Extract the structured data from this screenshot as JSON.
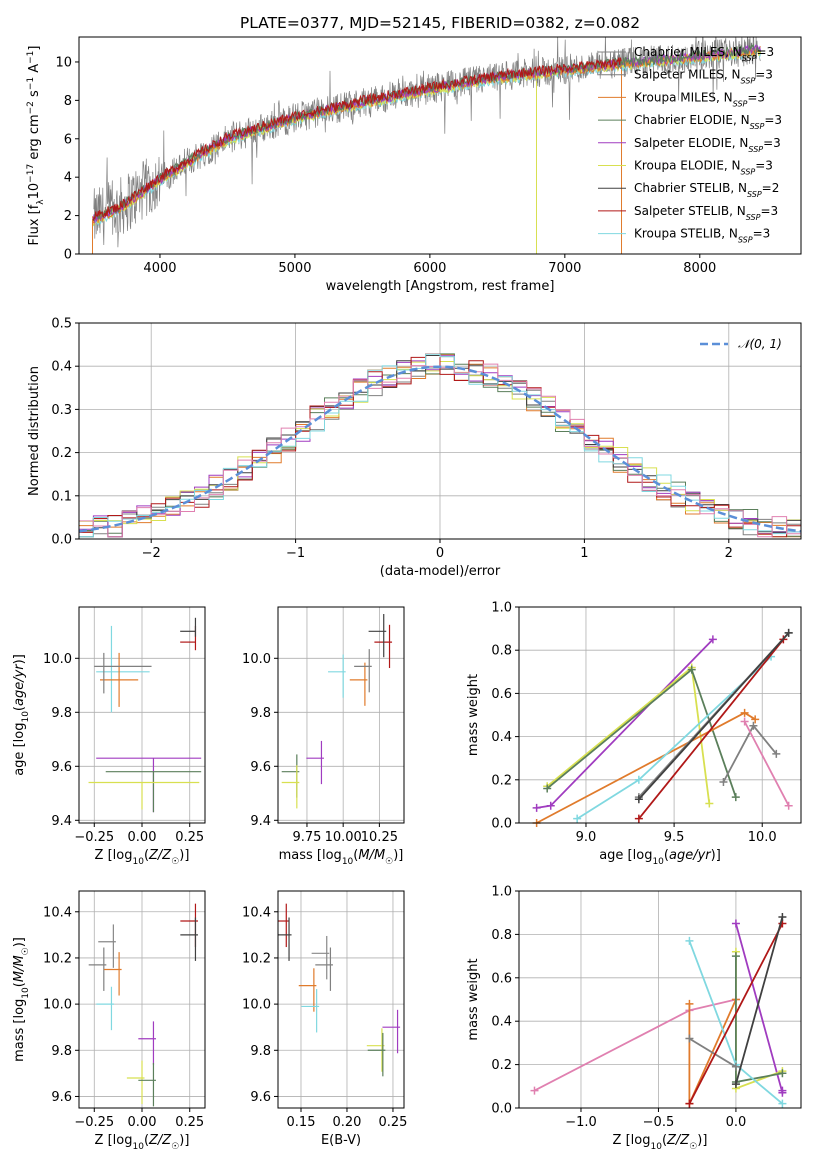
{
  "page": {
    "title": "PLATE=0377, MJD=52145, FIBERID=0382, z=0.082"
  },
  "colors": {
    "chabrier_miles": "#808080",
    "salpeter_miles": "#7f7f7f",
    "kroupa_miles": "#e07b2c",
    "chabrier_elodie": "#5b7f5b",
    "salpeter_elodie": "#a03cc0",
    "kroupa_elodie": "#d8e050",
    "chabrier_stelib": "#404040",
    "salpeter_stelib": "#b01818",
    "kroupa_stelib": "#80d8e0",
    "normal_curve": "#5b8fd8",
    "grid": "#b0b0b0"
  },
  "chart_data": [
    {
      "id": "spectrum",
      "type": "line",
      "xlabel": "wavelength [Angstrom, rest frame]",
      "ylabel": "Flux [f_λ10^-17 erg cm^-2 s^-1 A^-1]",
      "xlim": [
        3400,
        8750
      ],
      "ylim": [
        0,
        11.3
      ],
      "xticks": [
        4000,
        5000,
        6000,
        7000,
        8000
      ],
      "yticks": [
        0,
        2,
        4,
        6,
        8,
        10
      ],
      "grid": false,
      "legend_position": "right",
      "legend": [
        {
          "label": "Chabrier MILES, N_SSP=3",
          "color_key": "chabrier_miles"
        },
        {
          "label": "Salpeter MILES, N_SSP=3",
          "color_key": "salpeter_miles"
        },
        {
          "label": "Kroupa MILES, N_SSP=3",
          "color_key": "kroupa_miles"
        },
        {
          "label": "Chabrier ELODIE, N_SSP=3",
          "color_key": "chabrier_elodie"
        },
        {
          "label": "Salpeter ELODIE, N_SSP=3",
          "color_key": "salpeter_elodie"
        },
        {
          "label": "Kroupa ELODIE, N_SSP=3",
          "color_key": "kroupa_elodie"
        },
        {
          "label": "Chabrier STELIB, N_SSP=2",
          "color_key": "chabrier_stelib"
        },
        {
          "label": "Salpeter STELIB, N_SSP=3",
          "color_key": "salpeter_stelib"
        },
        {
          "label": "Kroupa STELIB, N_SSP=3",
          "color_key": "kroupa_stelib"
        }
      ],
      "continuum_wavelength": [
        3500,
        3700,
        4000,
        4300,
        4500,
        5000,
        5500,
        6000,
        6500,
        7000,
        7400,
        8000,
        8500
      ],
      "continuum_flux": [
        1.8,
        2.4,
        3.9,
        5.2,
        6.0,
        7.1,
        7.9,
        8.6,
        9.2,
        9.6,
        9.9,
        10.3,
        10.7
      ]
    },
    {
      "id": "residuals",
      "type": "histogram",
      "xlabel": "(data-model)/error",
      "ylabel": "Normed distribution",
      "xlim": [
        -2.5,
        2.5
      ],
      "ylim": [
        0,
        0.5
      ],
      "xticks": [
        -2,
        -1,
        0,
        1,
        2
      ],
      "yticks": [
        0.0,
        0.1,
        0.2,
        0.3,
        0.4,
        0.5
      ],
      "grid": true,
      "legend_position": "top-right",
      "legend": [
        {
          "label": "𝒩(0, 1)",
          "color_key": "normal_curve"
        }
      ],
      "bin_width": 0.1
    },
    {
      "id": "age_vs_Z",
      "type": "scatter",
      "xlabel": "Z [log10(Z/Z☉)]",
      "ylabel": "age  [log10(age/yr)]",
      "xlim": [
        -0.33,
        0.33
      ],
      "ylim": [
        9.39,
        10.19
      ],
      "xticks": [
        -0.25,
        0.0,
        0.25
      ],
      "yticks": [
        9.4,
        9.6,
        9.8,
        10.0
      ],
      "grid": true,
      "points": [
        {
          "key": "salpeter_stelib",
          "x": 0.28,
          "y": 10.06,
          "xerr": [
            0.08,
            0.0
          ],
          "yerr": [
            0.03,
            0.06
          ]
        },
        {
          "key": "chabrier_stelib",
          "x": 0.28,
          "y": 10.1,
          "xerr": [
            0.08,
            0.0
          ],
          "yerr": [
            0.02,
            0.05
          ]
        },
        {
          "key": "kroupa_stelib",
          "x": -0.16,
          "y": 9.95,
          "xerr": [
            0.08,
            0.2
          ],
          "yerr": [
            0.15,
            0.17
          ]
        },
        {
          "key": "kroupa_miles",
          "x": -0.12,
          "y": 9.92,
          "xerr": [
            0.1,
            0.1
          ],
          "yerr": [
            0.1,
            0.1
          ]
        },
        {
          "key": "chabrier_miles",
          "x": -0.2,
          "y": 9.97,
          "xerr": [
            0.05,
            0.25
          ],
          "yerr": [
            0.1,
            0.05
          ]
        },
        {
          "key": "salpeter_elodie",
          "x": 0.06,
          "y": 9.63,
          "xerr": [
            0.3,
            0.25
          ],
          "yerr": [
            0.2,
            0.0
          ]
        },
        {
          "key": "chabrier_elodie",
          "x": 0.06,
          "y": 9.58,
          "xerr": [
            0.25,
            0.25
          ],
          "yerr": [
            0.15,
            0.0
          ]
        },
        {
          "key": "kroupa_elodie",
          "x": 0.0,
          "y": 9.54,
          "xerr": [
            0.28,
            0.3
          ],
          "yerr": [
            0.1,
            0.0
          ]
        }
      ]
    },
    {
      "id": "age_vs_mass",
      "type": "scatter",
      "xlabel": "mass [log10(M/M☉)]",
      "ylabel": "",
      "xlim": [
        9.55,
        10.42
      ],
      "ylim": [
        9.39,
        10.19
      ],
      "xticks": [
        9.75,
        10.0,
        10.25
      ],
      "yticks": [
        9.4,
        9.6,
        9.8,
        10.0
      ],
      "grid": true,
      "points": [
        {
          "key": "salpeter_stelib",
          "x": 10.32,
          "y": 10.06
        },
        {
          "key": "chabrier_stelib",
          "x": 10.28,
          "y": 10.1
        },
        {
          "key": "kroupa_stelib",
          "x": 10.0,
          "y": 9.95
        },
        {
          "key": "kroupa_miles",
          "x": 10.15,
          "y": 9.92
        },
        {
          "key": "chabrier_miles",
          "x": 10.18,
          "y": 9.97
        },
        {
          "key": "salpeter_elodie",
          "x": 9.85,
          "y": 9.63
        },
        {
          "key": "chabrier_elodie",
          "x": 9.68,
          "y": 9.58
        },
        {
          "key": "kroupa_elodie",
          "x": 9.68,
          "y": 9.54
        }
      ]
    },
    {
      "id": "weight_vs_age",
      "type": "line",
      "xlabel": "age  [log10(age/yr)]",
      "ylabel": "mass weight",
      "xlim": [
        8.62,
        10.22
      ],
      "ylim": [
        0.0,
        1.0
      ],
      "xticks": [
        9.0,
        9.5,
        10.0
      ],
      "yticks": [
        0.0,
        0.2,
        0.4,
        0.6,
        0.8,
        1.0
      ],
      "grid": true,
      "series": [
        {
          "key": "salpeter_elodie",
          "x": [
            8.72,
            8.8,
            9.72
          ],
          "y": [
            0.07,
            0.08,
            0.85
          ]
        },
        {
          "key": "kroupa_elodie",
          "x": [
            8.78,
            9.6,
            9.7
          ],
          "y": [
            0.17,
            0.72,
            0.09
          ]
        },
        {
          "key": "chabrier_elodie",
          "x": [
            8.78,
            9.6,
            9.85
          ],
          "y": [
            0.16,
            0.71,
            0.12
          ]
        },
        {
          "key": "kroupa_miles",
          "x": [
            8.72,
            9.9,
            9.96
          ],
          "y": [
            0.0,
            0.51,
            0.48
          ]
        },
        {
          "key": "kroupa_stelib",
          "x": [
            8.95,
            9.3,
            10.05
          ],
          "y": [
            0.02,
            0.2,
            0.77
          ]
        },
        {
          "key": "chabrier_miles",
          "x": [
            9.78,
            9.95,
            10.08
          ],
          "y": [
            0.19,
            0.45,
            0.32
          ]
        },
        {
          "key": "salpeter_miles",
          "x": [
            9.3,
            10.15
          ],
          "y": [
            0.12,
            0.88
          ]
        },
        {
          "key": "salpeter_stelib",
          "x": [
            9.3,
            10.12
          ],
          "y": [
            0.02,
            0.85
          ]
        },
        {
          "key": "chabrier_stelib",
          "x": [
            9.3,
            10.15
          ],
          "y": [
            0.11,
            0.88
          ]
        },
        {
          "key": "salpeter_miles_pink",
          "color": "#e080b0",
          "x": [
            9.9,
            10.15
          ],
          "y": [
            0.47,
            0.08
          ]
        }
      ]
    },
    {
      "id": "mass_vs_Z",
      "type": "scatter",
      "xlabel": "Z [log10(Z/Z☉)]",
      "ylabel": "mass [log10(M/M☉)]",
      "xlim": [
        -0.33,
        0.33
      ],
      "ylim": [
        9.55,
        10.49
      ],
      "xticks": [
        -0.25,
        0.0,
        0.25
      ],
      "yticks": [
        9.6,
        9.8,
        10.0,
        10.2,
        10.4
      ],
      "grid": true,
      "points": [
        {
          "key": "salpeter_stelib",
          "x": 0.28,
          "y": 10.36
        },
        {
          "key": "chabrier_stelib",
          "x": 0.28,
          "y": 10.3
        },
        {
          "key": "salpeter_miles_pink",
          "x": -0.15,
          "y": 10.27
        },
        {
          "key": "chabrier_miles",
          "x": -0.2,
          "y": 10.17
        },
        {
          "key": "kroupa_miles",
          "x": -0.12,
          "y": 10.15
        },
        {
          "key": "kroupa_stelib",
          "x": -0.16,
          "y": 10.0
        },
        {
          "key": "salpeter_elodie",
          "x": 0.06,
          "y": 9.85
        },
        {
          "key": "kroupa_elodie",
          "x": 0.0,
          "y": 9.68
        },
        {
          "key": "chabrier_elodie",
          "x": 0.06,
          "y": 9.67
        }
      ]
    },
    {
      "id": "mass_vs_ebv",
      "type": "scatter",
      "xlabel": "E(B-V)",
      "ylabel": "",
      "xlim": [
        0.125,
        0.262
      ],
      "ylim": [
        9.55,
        10.49
      ],
      "xticks": [
        0.15,
        0.2,
        0.25
      ],
      "yticks": [
        9.6,
        9.8,
        10.0,
        10.2,
        10.4
      ],
      "grid": true,
      "points": [
        {
          "key": "salpeter_stelib",
          "x": 0.134,
          "y": 10.36
        },
        {
          "key": "chabrier_stelib",
          "x": 0.137,
          "y": 10.3
        },
        {
          "key": "salpeter_miles_pink",
          "x": 0.178,
          "y": 10.22
        },
        {
          "key": "chabrier_miles",
          "x": 0.182,
          "y": 10.17
        },
        {
          "key": "kroupa_miles",
          "x": 0.164,
          "y": 10.08
        },
        {
          "key": "kroupa_stelib",
          "x": 0.167,
          "y": 9.99
        },
        {
          "key": "salpeter_elodie",
          "x": 0.255,
          "y": 9.9
        },
        {
          "key": "kroupa_elodie",
          "x": 0.238,
          "y": 9.82
        },
        {
          "key": "chabrier_elodie",
          "x": 0.239,
          "y": 9.8
        }
      ]
    },
    {
      "id": "weight_vs_Z",
      "type": "line",
      "xlabel": "Z [log10(Z/Z☉)]",
      "ylabel": "mass weight",
      "xlim": [
        -1.4,
        0.42
      ],
      "ylim": [
        0.0,
        1.0
      ],
      "xticks": [
        -1.0,
        -0.5,
        0.0
      ],
      "yticks": [
        0.0,
        0.2,
        0.4,
        0.6,
        0.8,
        1.0
      ],
      "grid": true,
      "series": [
        {
          "key": "salpeter_miles_pink",
          "color": "#e080b0",
          "x": [
            -1.3,
            -0.3,
            0.0
          ],
          "y": [
            0.08,
            0.45,
            0.5
          ]
        },
        {
          "key": "kroupa_miles",
          "x": [
            -0.3,
            -0.3,
            0.0
          ],
          "y": [
            0.48,
            0.02,
            0.5
          ]
        },
        {
          "key": "salpeter_elodie",
          "x": [
            0.3,
            0.3,
            0.0
          ],
          "y": [
            0.08,
            0.07,
            0.85
          ]
        },
        {
          "key": "kroupa_elodie",
          "x": [
            0.0,
            0.0,
            0.3
          ],
          "y": [
            0.72,
            0.09,
            0.17
          ]
        },
        {
          "key": "chabrier_elodie",
          "x": [
            0.0,
            0.0,
            0.3
          ],
          "y": [
            0.7,
            0.12,
            0.16
          ]
        },
        {
          "key": "kroupa_stelib",
          "x": [
            -0.3,
            0.0,
            0.3
          ],
          "y": [
            0.77,
            0.2,
            0.02
          ]
        },
        {
          "key": "chabrier_miles",
          "x": [
            -0.3,
            0.0
          ],
          "y": [
            0.32,
            0.19
          ]
        },
        {
          "key": "salpeter_stelib",
          "x": [
            -0.3,
            0.3
          ],
          "y": [
            0.02,
            0.85
          ]
        },
        {
          "key": "chabrier_stelib",
          "x": [
            0.0,
            0.3
          ],
          "y": [
            0.11,
            0.88
          ]
        }
      ]
    }
  ]
}
